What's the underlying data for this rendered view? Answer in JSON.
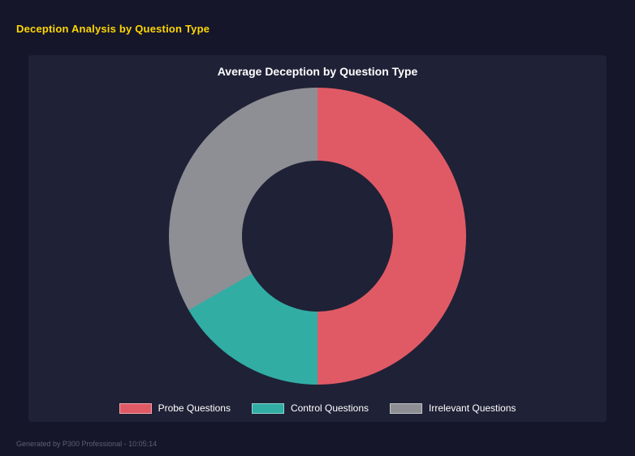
{
  "page": {
    "title": "Deception Analysis by Question Type",
    "footer": "Generated by P300 Professional - 10:05:14"
  },
  "chart_data": {
    "type": "pie",
    "donut": true,
    "title": "Average Deception by Question Type",
    "categories": [
      "Probe Questions",
      "Control Questions",
      "Irrelevant Questions"
    ],
    "values": [
      50,
      16.7,
      33.3
    ],
    "colors": [
      "#e05a65",
      "#31ada4",
      "#8e8f94"
    ],
    "legend_position": "bottom",
    "hole_ratio": 0.51,
    "start_angle_deg": 0,
    "direction": "clockwise",
    "background": "#1f2136"
  }
}
